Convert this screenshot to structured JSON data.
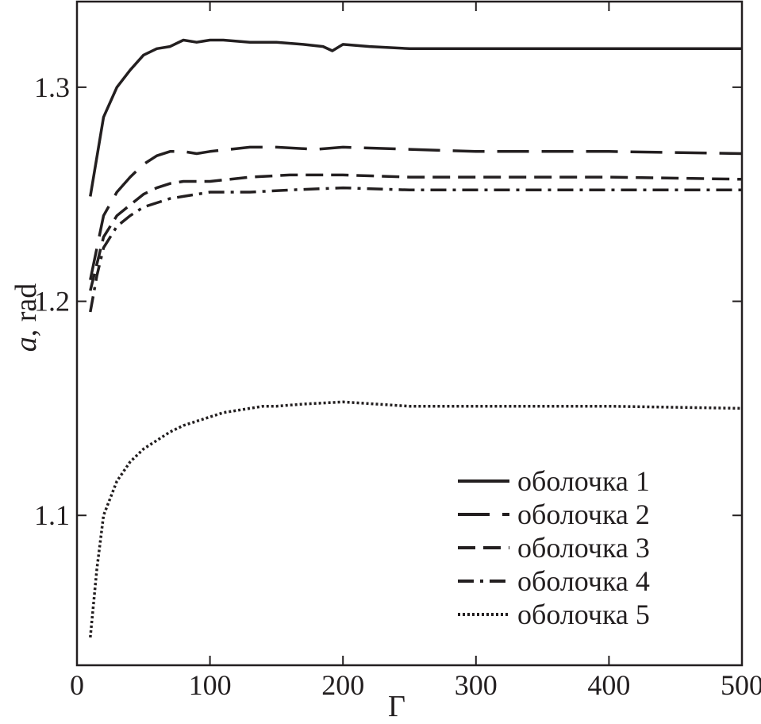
{
  "chart_data": {
    "type": "line",
    "xlabel": "Γ",
    "ylabel_italic": "a",
    "ylabel_rest": ", rad",
    "xlim": [
      0,
      500
    ],
    "ylim": [
      1.03,
      1.34
    ],
    "x_ticks": [
      0,
      100,
      200,
      300,
      400,
      500
    ],
    "x_tick_labels": [
      "0",
      "100",
      "200",
      "300",
      "400",
      "500"
    ],
    "y_ticks": [
      1.1,
      1.2,
      1.3
    ],
    "y_tick_labels": [
      "1.1",
      "1.2",
      "1.3"
    ],
    "grid": false,
    "legend_position": "bottom-right",
    "series": [
      {
        "name": "оболочка 1",
        "dash": "solid",
        "x": [
          10,
          20,
          30,
          40,
          50,
          60,
          70,
          80,
          90,
          100,
          110,
          130,
          150,
          170,
          185,
          192,
          200,
          220,
          250,
          300,
          400,
          500
        ],
        "y": [
          1.249,
          1.286,
          1.3,
          1.308,
          1.315,
          1.318,
          1.319,
          1.322,
          1.321,
          1.322,
          1.322,
          1.321,
          1.321,
          1.32,
          1.319,
          1.317,
          1.32,
          1.319,
          1.318,
          1.318,
          1.318,
          1.318
        ]
      },
      {
        "name": "оболочка 2",
        "dash": "longdash",
        "x": [
          10,
          20,
          30,
          40,
          50,
          60,
          70,
          80,
          90,
          100,
          130,
          150,
          180,
          200,
          250,
          300,
          400,
          500
        ],
        "y": [
          1.21,
          1.24,
          1.251,
          1.258,
          1.264,
          1.268,
          1.27,
          1.27,
          1.269,
          1.27,
          1.272,
          1.272,
          1.271,
          1.272,
          1.271,
          1.27,
          1.27,
          1.269
        ]
      },
      {
        "name": "оболочка 3",
        "dash": "dash",
        "x": [
          10,
          20,
          30,
          40,
          50,
          60,
          70,
          80,
          90,
          100,
          130,
          160,
          200,
          250,
          300,
          400,
          500
        ],
        "y": [
          1.205,
          1.23,
          1.24,
          1.245,
          1.25,
          1.253,
          1.255,
          1.256,
          1.256,
          1.256,
          1.258,
          1.259,
          1.259,
          1.258,
          1.258,
          1.258,
          1.257
        ]
      },
      {
        "name": "оболочка 4",
        "dash": "dashdot",
        "x": [
          10,
          15,
          20,
          30,
          40,
          50,
          60,
          70,
          80,
          90,
          100,
          130,
          160,
          200,
          250,
          300,
          400,
          500
        ],
        "y": [
          1.195,
          1.212,
          1.225,
          1.235,
          1.24,
          1.244,
          1.246,
          1.248,
          1.249,
          1.25,
          1.251,
          1.251,
          1.252,
          1.253,
          1.252,
          1.252,
          1.252,
          1.252
        ]
      },
      {
        "name": "оболочка 5",
        "dash": "dot",
        "x": [
          10,
          15,
          20,
          25,
          30,
          40,
          50,
          60,
          70,
          80,
          90,
          100,
          110,
          130,
          140,
          150,
          170,
          200,
          250,
          300,
          400,
          500
        ],
        "y": [
          1.043,
          1.075,
          1.1,
          1.108,
          1.116,
          1.125,
          1.131,
          1.135,
          1.139,
          1.142,
          1.144,
          1.146,
          1.148,
          1.15,
          1.151,
          1.151,
          1.152,
          1.153,
          1.151,
          1.151,
          1.151,
          1.15
        ]
      }
    ]
  }
}
